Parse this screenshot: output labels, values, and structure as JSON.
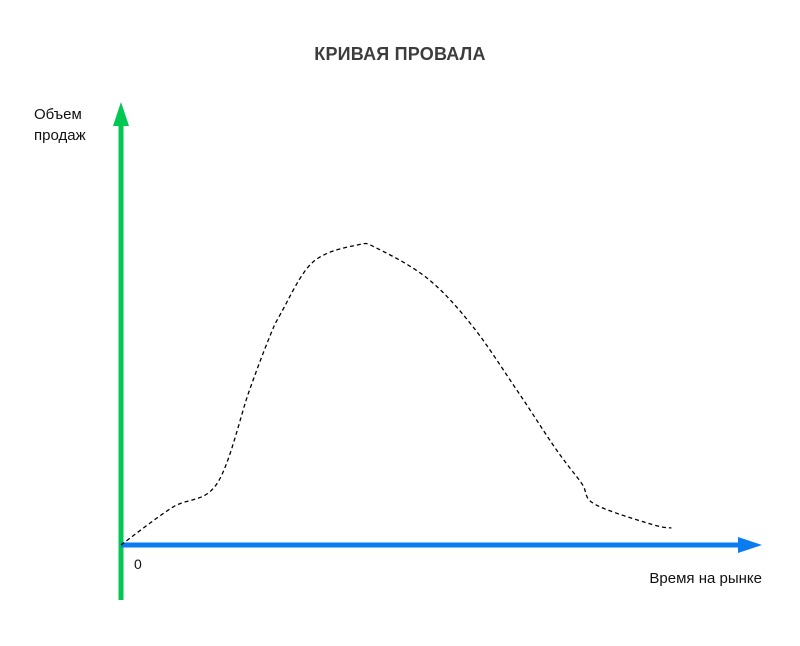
{
  "chart_data": {
    "type": "line",
    "title": "КРИВАЯ ПРОВАЛА",
    "ylabel_lines": [
      "Объем",
      "продаж"
    ],
    "xlabel": "Время на рынке",
    "origin_label": "0",
    "xlim": [
      0,
      100
    ],
    "ylim": [
      0,
      100
    ],
    "grid": false,
    "legend": "none",
    "series": [
      {
        "line_style": "dashed",
        "color": "#000000",
        "x": [
          0,
          8,
          15,
          20,
          23,
          25,
          30,
          37,
          40,
          48,
          55,
          62,
          68,
          72,
          74,
          83,
          86
        ],
        "y": [
          0,
          11,
          18,
          45,
          60,
          68,
          83,
          88,
          87,
          78,
          64,
          45,
          28,
          18,
          12,
          6,
          5
        ]
      }
    ],
    "colors": {
      "y_axis": "#00c853",
      "x_axis": "#0a7cf0",
      "title": "#3d3d3d"
    }
  }
}
